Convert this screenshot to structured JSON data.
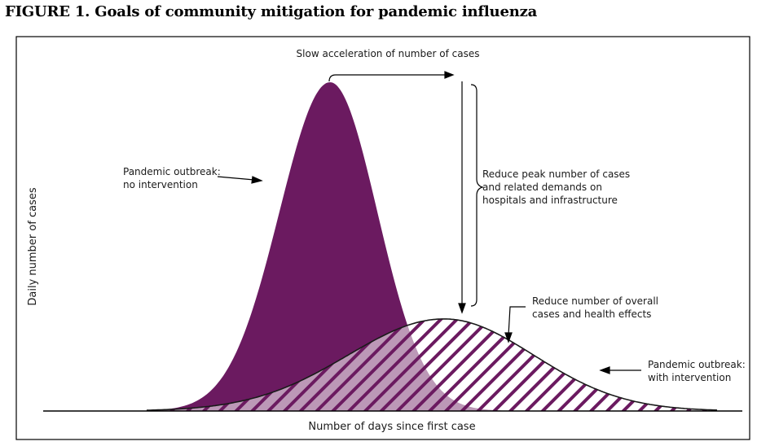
{
  "figure": {
    "title": "FIGURE 1. Goals of community mitigation for pandemic influenza"
  },
  "axes": {
    "xlabel": "Number of days since first case",
    "ylabel": "Daily number of cases"
  },
  "annotations": {
    "slow_acceleration": "Slow acceleration of number of cases",
    "no_intervention": [
      "Pandemic outbreak:",
      "no intervention"
    ],
    "reduce_peak": [
      "Reduce peak number of cases",
      "and related demands on",
      "hospitals and infrastructure"
    ],
    "reduce_overall": [
      "Reduce number of overall",
      "cases and health effects"
    ],
    "with_intervention": [
      "Pandemic outbreak:",
      "with intervention"
    ]
  },
  "colors": {
    "no_intervention_fill": "#6b1a60",
    "with_intervention_hatch": "#6b1a60",
    "frame": "#000000"
  },
  "curves": {
    "no_intervention": {
      "shape": "bell",
      "relative_peak_height": 1.0
    },
    "with_intervention": {
      "shape": "bell",
      "relative_peak_height": 0.28,
      "fill": "hatched"
    }
  }
}
